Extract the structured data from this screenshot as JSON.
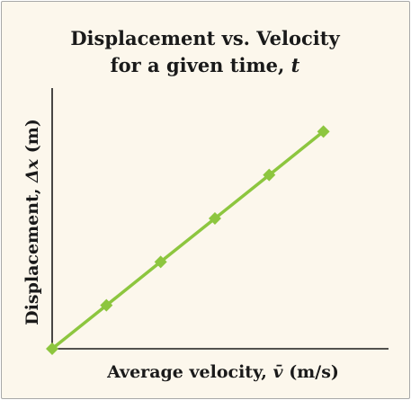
{
  "chart_data": {
    "type": "line",
    "title_line1": "Displacement vs. Velocity",
    "title_line2": "for a given time, ",
    "title_time_symbol": "t",
    "xlabel_prefix": "Average velocity, ",
    "xlabel_symbol": "v̄",
    "xlabel_unit": " (m/s)",
    "ylabel_prefix": "Displacement, ",
    "ylabel_symbol": "Δx",
    "ylabel_unit": " (m)",
    "x": [
      0,
      1,
      2,
      3,
      4,
      5
    ],
    "y": [
      0,
      1,
      2,
      3,
      4,
      5
    ],
    "xlim": [
      0,
      6.2
    ],
    "ylim": [
      0,
      6.0
    ],
    "grid": false,
    "legend": "none",
    "series_color": "#8dc63f",
    "background_color": "#fcf7ec"
  }
}
